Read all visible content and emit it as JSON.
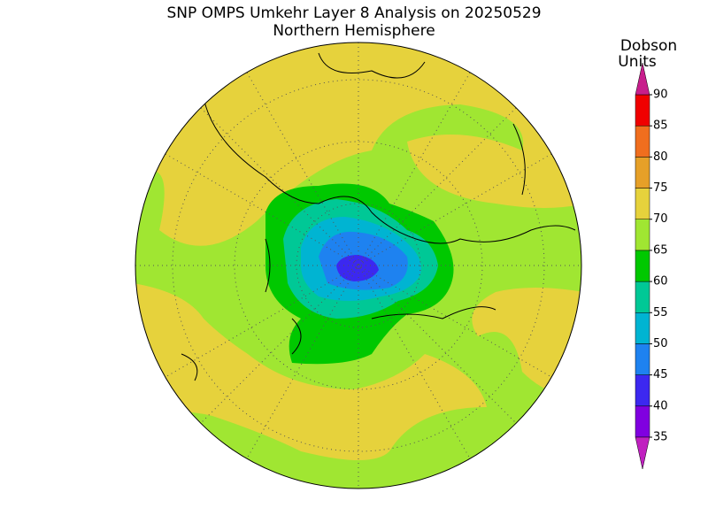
{
  "map": {
    "title": "SNP OMPS Umkehr Layer 8 Analysis on 20250529",
    "subtitle": "Northern Hemisphere",
    "colorbar": {
      "label_lines": [
        "Dobson",
        "Units"
      ],
      "ticks": [
        35,
        40,
        45,
        50,
        55,
        60,
        65,
        70,
        75,
        80,
        85,
        90
      ],
      "under_color": "#c020c0",
      "band_colors": [
        "#8000e0",
        "#3c28f0",
        "#1e82f0",
        "#00b4d2",
        "#00c896",
        "#00c800",
        "#a0e632",
        "#e6d23c",
        "#e6a028",
        "#f06e1e",
        "#f00000"
      ],
      "over_color": "#c81e8c"
    }
  }
}
